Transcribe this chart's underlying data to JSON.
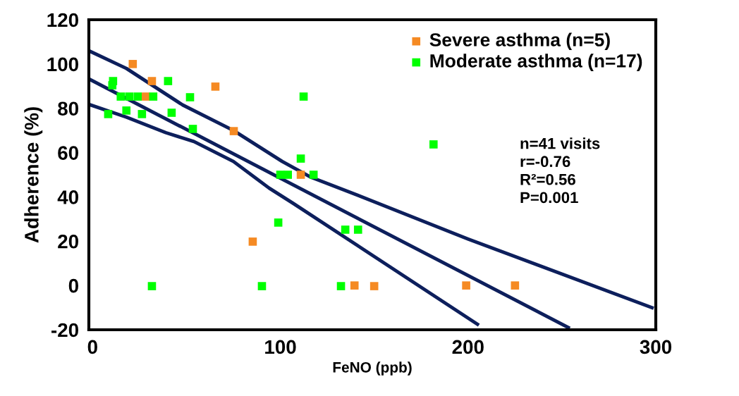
{
  "chart_data": {
    "type": "scatter",
    "xlabel": "FeNO (ppb)",
    "ylabel": "Adherence (%)",
    "xlim": [
      -2,
      300
    ],
    "xticks": [
      0,
      100,
      200,
      300
    ],
    "ylim": [
      -20,
      120
    ],
    "yticks": [
      -20,
      0,
      20,
      40,
      60,
      80,
      100,
      120
    ],
    "grid": false,
    "legend": "top right",
    "marker": "square",
    "series": [
      {
        "name": "Severe asthma (n=5)",
        "color": "#f58a23",
        "x": [
          21.4,
          31.6,
          28.2,
          65.4,
          75.2,
          110.9,
          85.3,
          139.5,
          150,
          199,
          225
        ],
        "values": [
          100,
          92.3,
          85.3,
          89.8,
          69.7,
          50,
          19.8,
          0,
          -0.3,
          0,
          0
        ]
      },
      {
        "name": "Moderate asthma (n=17)",
        "color": "#00ff00",
        "x": [
          10.9,
          10.5,
          15,
          19.5,
          24,
          32.3,
          40.2,
          51.9,
          8.3,
          18,
          26.3,
          42.1,
          53.4,
          112.4,
          110.9,
          100,
          104,
          117.7,
          181.6,
          98.9,
          134.6,
          141.4,
          31.6,
          90.2,
          132.3
        ],
        "values": [
          92.3,
          90.4,
          85.3,
          85.3,
          85.3,
          85.3,
          92.3,
          85,
          77.4,
          79,
          77.4,
          78,
          70.7,
          85.3,
          57.3,
          50,
          50,
          50,
          63.7,
          28.4,
          25.2,
          25.2,
          -0.3,
          -0.3,
          -0.3
        ]
      },
      {
        "color": "#0d1f5c",
        "type": "line",
        "marker": "none",
        "x": [
          -2,
          18,
          48,
          75,
          101,
          116,
          148,
          200,
          298
        ],
        "values": [
          106,
          98,
          81.5,
          70,
          56,
          49,
          38.5,
          21,
          -10
        ]
      },
      {
        "color": "#0d1f5c",
        "type": "line",
        "marker": "none",
        "x": [
          -2,
          253.4
        ],
        "values": [
          93.3,
          -19
        ]
      },
      {
        "color": "#0d1f5c",
        "type": "line",
        "marker": "none",
        "x": [
          -2,
          18,
          39,
          54,
          75,
          94,
          107,
          205
        ],
        "values": [
          81.8,
          76,
          69,
          65,
          56,
          44,
          37,
          -17.5
        ]
      }
    ],
    "annotations": [
      "n=41 visits",
      "r=-0.76",
      "R²=0.56",
      "P=0.001"
    ]
  }
}
